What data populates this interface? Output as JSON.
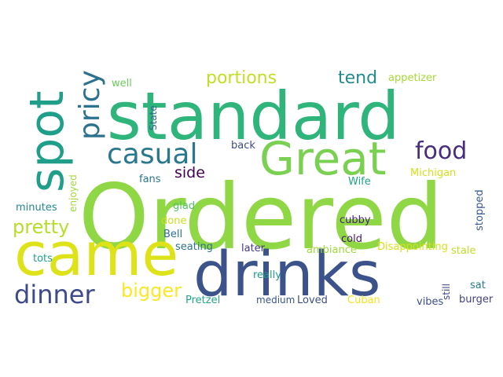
{
  "wordcloud": {
    "words": [
      {
        "text": "Ordered",
        "color": "#8fd744"
      },
      {
        "text": "standard",
        "color": "#2fb47c"
      },
      {
        "text": "drinks",
        "color": "#3b528b"
      },
      {
        "text": "came",
        "color": "#dde318"
      },
      {
        "text": "Great",
        "color": "#7ad151"
      },
      {
        "text": "spot",
        "color": "#1f9e89"
      },
      {
        "text": "pricy",
        "color": "#2c728e"
      },
      {
        "text": "casual",
        "color": "#2a788e"
      },
      {
        "text": "food",
        "color": "#472d7b"
      },
      {
        "text": "dinner",
        "color": "#3e4a89"
      },
      {
        "text": "pretty",
        "color": "#b5de2b"
      },
      {
        "text": "bigger",
        "color": "#fde725"
      },
      {
        "text": "portions",
        "color": "#c2df23"
      },
      {
        "text": "tend",
        "color": "#228b8d"
      },
      {
        "text": "side",
        "color": "#440154"
      },
      {
        "text": "appetizer",
        "color": "#a5db36"
      },
      {
        "text": "well",
        "color": "#6ccd5a"
      },
      {
        "text": "State",
        "color": "#31688e"
      },
      {
        "text": "back",
        "color": "#3e4989"
      },
      {
        "text": "Michigan",
        "color": "#d2e21b"
      },
      {
        "text": "fans",
        "color": "#2a788e"
      },
      {
        "text": "Wife",
        "color": "#20a486"
      },
      {
        "text": "enjoyed",
        "color": "#9fda3a"
      },
      {
        "text": "minutes",
        "color": "#23888e"
      },
      {
        "text": "glad",
        "color": "#52c569"
      },
      {
        "text": "stopped",
        "color": "#375a8c"
      },
      {
        "text": "cubby",
        "color": "#482677"
      },
      {
        "text": "done",
        "color": "#c8e020"
      },
      {
        "text": "Bell",
        "color": "#2d708e"
      },
      {
        "text": "cold",
        "color": "#481769"
      },
      {
        "text": "seating",
        "color": "#2c728e"
      },
      {
        "text": "later",
        "color": "#453781"
      },
      {
        "text": "ambiance",
        "color": "#a0da39"
      },
      {
        "text": "Disappointing",
        "color": "#d8e219"
      },
      {
        "text": "stale",
        "color": "#c0df25"
      },
      {
        "text": "really",
        "color": "#1e9b8a"
      },
      {
        "text": "still",
        "color": "#3f4788"
      },
      {
        "text": "sat",
        "color": "#297b8e"
      },
      {
        "text": "tots",
        "color": "#20a386"
      },
      {
        "text": "Pretzel",
        "color": "#22a785"
      },
      {
        "text": "medium",
        "color": "#39558c"
      },
      {
        "text": "Loved",
        "color": "#3c4f8a"
      },
      {
        "text": "Cuban",
        "color": "#f1e51d"
      },
      {
        "text": "vibes",
        "color": "#3d4d8a"
      },
      {
        "text": "burger",
        "color": "#414287"
      }
    ]
  }
}
